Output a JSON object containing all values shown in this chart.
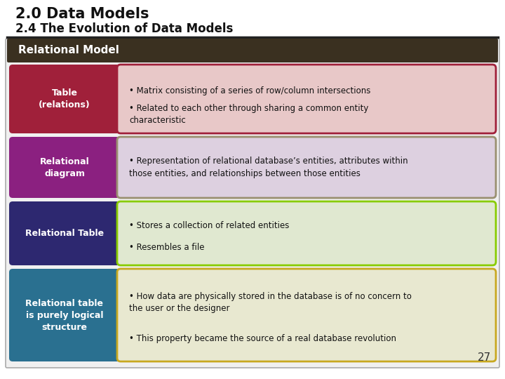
{
  "title_line1": "2.0 Data Models",
  "title_line2": "2.4 The Evolution of Data Models",
  "section_header": "Relational Model",
  "header_bg": "#3a3020",
  "slide_bg": "#ffffff",
  "page_number": "27",
  "rows": [
    {
      "label": "Table\n(relations)",
      "label_bg": "#a0203a",
      "label_fg": "#ffffff",
      "box_bg": "#e8c8c8",
      "box_border": "#a0203a",
      "bullets": [
        "Matrix consisting of a series of row/column intersections",
        "Related to each other through sharing a common entity\ncharacteristic"
      ]
    },
    {
      "label": "Relational\ndiagram",
      "label_bg": "#8b2080",
      "label_fg": "#ffffff",
      "box_bg": "#ddd0e0",
      "box_border": "#9a9070",
      "bullets": [
        "Representation of relational database’s entities, attributes within\nthose entities, and relationships between those entities"
      ]
    },
    {
      "label": "Relational Table",
      "label_bg": "#2d2870",
      "label_fg": "#ffffff",
      "box_bg": "#e0e8d0",
      "box_border": "#88cc00",
      "bullets": [
        "Stores a collection of related entities",
        "Resembles a file"
      ]
    },
    {
      "label": "Relational table\nis purely logical\nstructure",
      "label_bg": "#2a7090",
      "label_fg": "#ffffff",
      "box_bg": "#e8e8d0",
      "box_border": "#c8a820",
      "bullets": [
        "How data are physically stored in the database is of no concern to\nthe user or the designer",
        "This property became the source of a real database revolution"
      ]
    }
  ]
}
